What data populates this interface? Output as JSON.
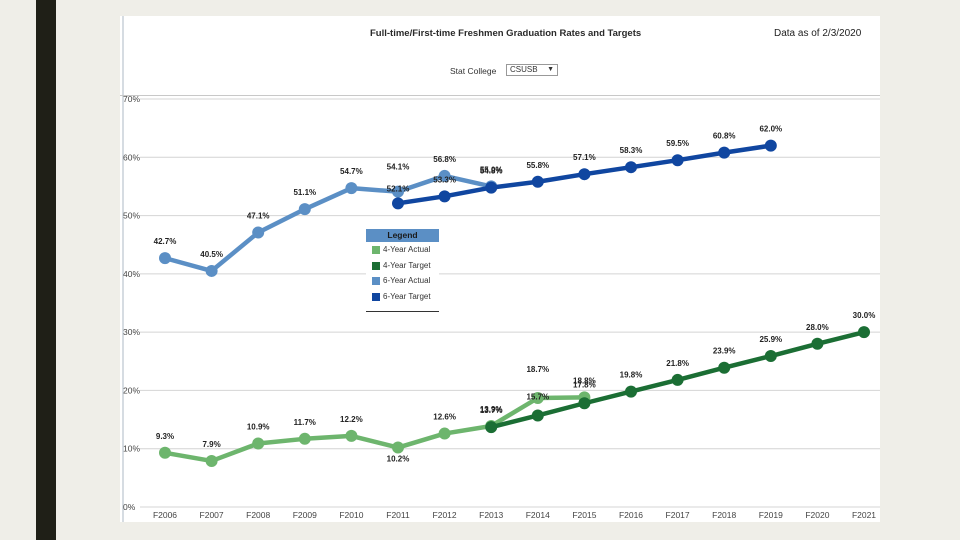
{
  "header": {
    "title": "Full-time/First-time Freshmen Graduation Rates and Targets",
    "data_as_of": "Data as of 2/3/2020"
  },
  "filter": {
    "label": "Stat College",
    "selected_value": "CSUSB",
    "caret_glyph": "▼"
  },
  "chart_data": {
    "type": "line",
    "title": "Full-time/First-time Freshmen Graduation Rates and Targets",
    "xlabel": "",
    "ylabel": "",
    "ylim": [
      0,
      70
    ],
    "yticks": [
      0,
      10,
      20,
      30,
      40,
      50,
      60,
      70
    ],
    "ytick_labels": [
      "0%",
      "10%",
      "20%",
      "30%",
      "40%",
      "50%",
      "60%",
      "70%"
    ],
    "grid": true,
    "legend_position": "center",
    "categories": [
      "F2006",
      "F2007",
      "F2008",
      "F2009",
      "F2010",
      "F2011",
      "F2012",
      "F2013",
      "F2014",
      "F2015",
      "F2016",
      "F2017",
      "F2018",
      "F2019",
      "F2020",
      "F2021"
    ],
    "series": [
      {
        "name": "4-Year Actual",
        "color": "#6db56d",
        "values": [
          9.3,
          7.9,
          10.9,
          11.7,
          12.2,
          10.2,
          12.6,
          13.9,
          18.7,
          18.8,
          null,
          null,
          null,
          null,
          null,
          null
        ],
        "labels": [
          "9.3%",
          "7.9%",
          "10.9%",
          "11.7%",
          "12.2%",
          "10.2%",
          "12.6%",
          "13.9%",
          "18.7%",
          "18.8%",
          null,
          null,
          null,
          null,
          null,
          null
        ]
      },
      {
        "name": "4-Year Target",
        "color": "#1b6e34",
        "values": [
          null,
          null,
          null,
          null,
          null,
          null,
          null,
          13.7,
          15.7,
          17.8,
          19.8,
          21.8,
          23.9,
          25.9,
          28.0,
          30.0
        ],
        "labels": [
          null,
          null,
          null,
          null,
          null,
          null,
          null,
          "13.7%",
          "15.7%",
          "17.8%",
          "19.8%",
          "21.8%",
          "23.9%",
          "25.9%",
          "28.0%",
          "30.0%"
        ]
      },
      {
        "name": "6-Year Actual",
        "color": "#5b8fc5",
        "values": [
          42.7,
          40.5,
          47.1,
          51.1,
          54.7,
          54.1,
          56.8,
          55.0,
          null,
          null,
          null,
          null,
          null,
          null,
          null,
          null
        ],
        "labels": [
          "42.7%",
          "40.5%",
          "47.1%",
          "51.1%",
          "54.7%",
          "54.1%",
          "56.8%",
          "55.0%",
          null,
          null,
          null,
          null,
          null,
          null,
          null,
          null
        ]
      },
      {
        "name": "6-Year Target",
        "color": "#1046a0",
        "values": [
          null,
          null,
          null,
          null,
          null,
          52.1,
          53.3,
          54.8,
          55.8,
          57.1,
          58.3,
          59.5,
          60.8,
          62.0,
          null,
          null
        ],
        "labels": [
          null,
          null,
          null,
          null,
          null,
          "52.1%",
          "53.3%",
          "54.8%",
          "55.8%",
          "57.1%",
          "58.3%",
          "59.5%",
          "60.8%",
          "62.0%",
          null,
          null
        ]
      }
    ]
  },
  "legend": {
    "title": "Legend",
    "items": [
      {
        "label": "4-Year Actual",
        "color": "#6db56d"
      },
      {
        "label": "4-Year Target",
        "color": "#1b6e34"
      },
      {
        "label": "6-Year Actual",
        "color": "#5b8fc5"
      },
      {
        "label": "6-Year Target",
        "color": "#1046a0"
      }
    ]
  }
}
